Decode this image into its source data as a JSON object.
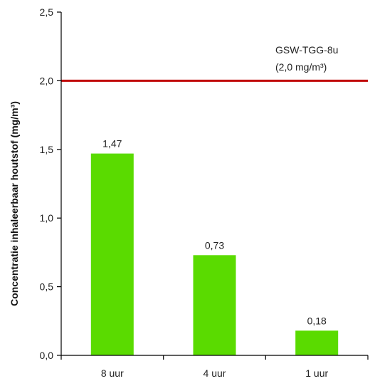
{
  "chart_data": {
    "type": "bar",
    "categories": [
      "8 uur",
      "4 uur",
      "1 uur"
    ],
    "values": [
      1.47,
      0.73,
      0.18
    ],
    "value_labels": [
      "1,47",
      "0,73",
      "0,18"
    ],
    "title": "",
    "xlabel": "",
    "ylabel": "Concentratie inhaleerbaar houtstof (mg/m³)",
    "ylim": [
      0,
      2.5
    ],
    "yticks": [
      0,
      0.5,
      1.0,
      1.5,
      2.0,
      2.5
    ],
    "ytick_labels": [
      "0,0",
      "0,5",
      "1,0",
      "1,5",
      "2,0",
      "2,5"
    ],
    "grid": false,
    "bar_color": "#5adb00",
    "reference_line": {
      "value": 2.0,
      "color": "#c00000",
      "label_line1": "GSW-TGG-8u",
      "label_line2": "(2,0 mg/m³)"
    }
  }
}
